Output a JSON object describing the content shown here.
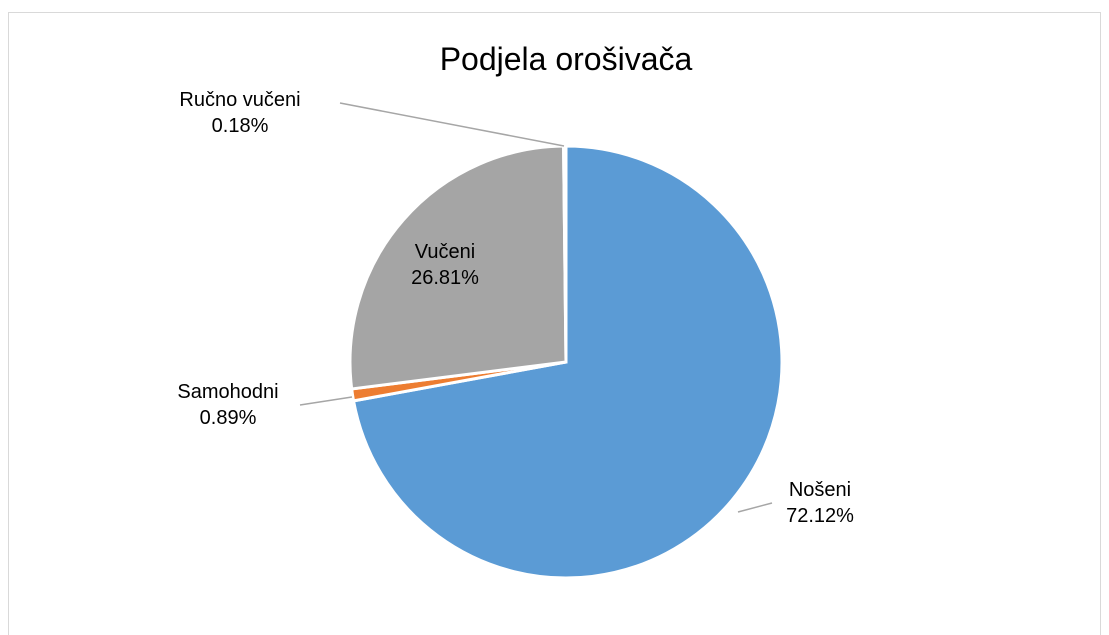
{
  "chart_data": {
    "type": "pie",
    "title": "Podjela orošivača",
    "categories": [
      "Nošeni",
      "Samohodni",
      "Vučeni",
      "Ručno vučeni"
    ],
    "values": [
      72.12,
      0.89,
      26.81,
      0.18
    ],
    "value_labels": [
      "72.12%",
      "0.89%",
      "26.81%",
      "0.18%"
    ],
    "colors": [
      "#5b9bd5",
      "#ed7d31",
      "#a5a5a5",
      "#ffc000"
    ]
  }
}
